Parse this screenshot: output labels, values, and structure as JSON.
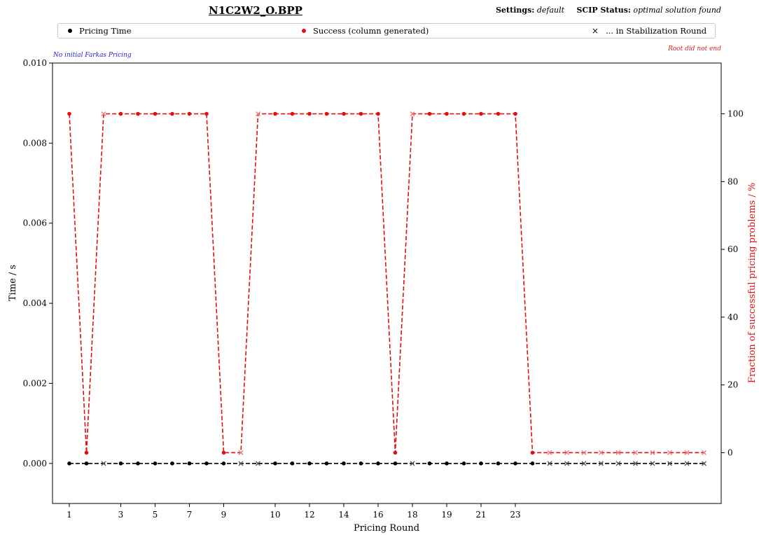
{
  "header": {
    "title": "N1C2W2_O.BPP",
    "settings_label": "Settings:",
    "settings_value": "default",
    "status_label": "SCIP Status:",
    "status_value": "optimal solution found"
  },
  "legend": {
    "pricing_time": "Pricing Time",
    "success": "Success (column generated)",
    "stabilization": "... in Stabilization Round",
    "stabilization_marker": "×"
  },
  "notes": {
    "left": "No initial Farkas Pricing",
    "right": "Root did not end"
  },
  "colors": {
    "time": "#000000",
    "success": "#e01010",
    "stab_time": "#555555",
    "stab_success": "#f07a7a"
  },
  "chart_data": {
    "type": "line",
    "xlabel": "Pricing Round",
    "ylabel": "Time / s",
    "ylabel_right": "Fraction of successful pricing problems / %",
    "ylim": [
      -0.001,
      0.01
    ],
    "ylim_right": [
      -15,
      115
    ],
    "yticks": [
      "0.000",
      "0.002",
      "0.004",
      "0.006",
      "0.008",
      "0.010"
    ],
    "yticks_right": [
      "0",
      "20",
      "40",
      "60",
      "80",
      "100"
    ],
    "x_tick_labels": [
      "1",
      "3",
      "5",
      "7",
      "9",
      "10",
      "12",
      "14",
      "16",
      "18",
      "19",
      "21",
      "23"
    ],
    "x_tick_index": [
      0,
      3,
      5,
      7,
      9,
      12,
      14,
      16,
      18,
      20,
      22,
      24,
      26
    ],
    "n_points": 38,
    "time_values": [
      0,
      0,
      0,
      0,
      0,
      0,
      0,
      0,
      0,
      0,
      0,
      0,
      0,
      0,
      0,
      0,
      0,
      0,
      0,
      0,
      0,
      0,
      0,
      0,
      0,
      0,
      0,
      0,
      0,
      0,
      0,
      0,
      0,
      0,
      0,
      0,
      0,
      0
    ],
    "success_values": [
      100,
      0,
      100,
      100,
      100,
      100,
      100,
      100,
      100,
      0,
      0,
      100,
      100,
      100,
      100,
      100,
      100,
      100,
      100,
      0,
      100,
      100,
      100,
      100,
      100,
      100,
      100,
      0,
      0,
      0,
      0,
      0,
      0,
      0,
      0,
      0,
      0,
      0
    ],
    "stabilization_flags": [
      0,
      0,
      1,
      0,
      0,
      0,
      0,
      0,
      0,
      0,
      1,
      1,
      0,
      0,
      0,
      0,
      0,
      0,
      0,
      0,
      1,
      0,
      0,
      0,
      0,
      0,
      0,
      0,
      1,
      1,
      1,
      1,
      1,
      1,
      1,
      1,
      1,
      1
    ],
    "grid": false,
    "legend_position": "top"
  }
}
